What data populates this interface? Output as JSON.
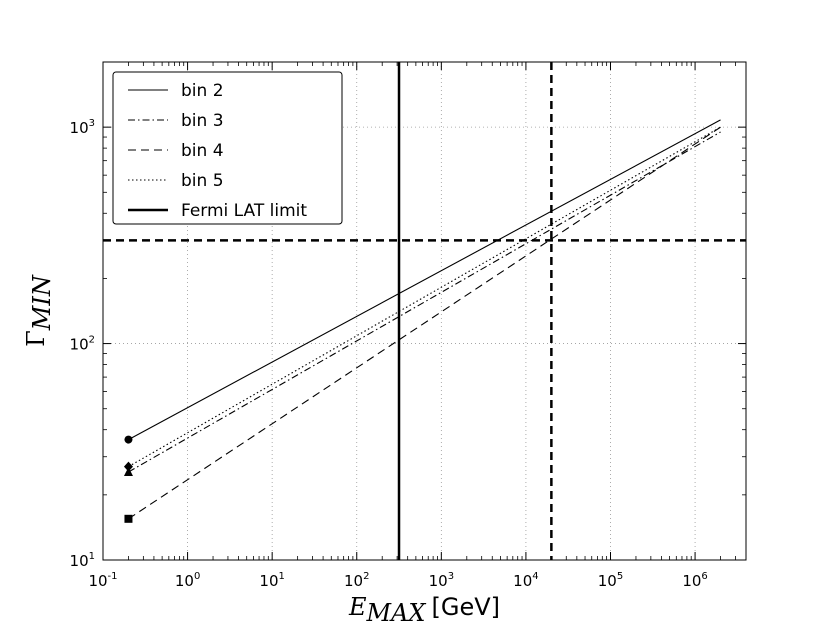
{
  "chart_data": {
    "type": "line",
    "xscale": "log",
    "yscale": "log",
    "xlim": [
      0.1,
      4000000
    ],
    "ylim": [
      10,
      2000
    ],
    "grid": true,
    "xlabel": {
      "symbol": "E",
      "sub": "MAX",
      "unit": "[GeV]"
    },
    "ylabel": {
      "symbol": "Γ",
      "sub": "MIN"
    },
    "xticks": [
      {
        "value": 0.1,
        "base": "10",
        "exp": "-1"
      },
      {
        "value": 1,
        "base": "10",
        "exp": "0"
      },
      {
        "value": 10,
        "base": "10",
        "exp": "1"
      },
      {
        "value": 100,
        "base": "10",
        "exp": "2"
      },
      {
        "value": 1000,
        "base": "10",
        "exp": "3"
      },
      {
        "value": 10000,
        "base": "10",
        "exp": "4"
      },
      {
        "value": 100000,
        "base": "10",
        "exp": "5"
      },
      {
        "value": 1000000,
        "base": "10",
        "exp": "6"
      }
    ],
    "yticks": [
      {
        "value": 10,
        "base": "10",
        "exp": "1"
      },
      {
        "value": 100,
        "base": "10",
        "exp": "2"
      },
      {
        "value": 1000,
        "base": "10",
        "exp": "3"
      }
    ],
    "legend_position": "top-left",
    "series": [
      {
        "name": "bin 2",
        "style": "solid",
        "marker": "circle",
        "x": [
          0.2,
          2000000
        ],
        "y": [
          36,
          1080
        ]
      },
      {
        "name": "bin 3",
        "style": "dashdot",
        "marker": "triangle",
        "x": [
          0.2,
          2000000
        ],
        "y": [
          25.5,
          950
        ]
      },
      {
        "name": "bin 4",
        "style": "dashed",
        "marker": "square",
        "x": [
          0.2,
          2000000
        ],
        "y": [
          15.5,
          1000
        ]
      },
      {
        "name": "bin 5",
        "style": "dotted",
        "marker": "diamond",
        "x": [
          0.2,
          2000000
        ],
        "y": [
          27,
          1000
        ]
      }
    ],
    "reference_lines": [
      {
        "name": "Fermi LAT limit",
        "orientation": "vertical",
        "value": 316,
        "style": "solid-thick"
      },
      {
        "orientation": "vertical",
        "value": 20000,
        "style": "dashed-thick"
      },
      {
        "orientation": "horizontal",
        "value": 300,
        "style": "dashed-thick"
      }
    ],
    "legend": [
      "bin 2",
      "bin 3",
      "bin 4",
      "bin 5",
      "Fermi LAT limit"
    ]
  }
}
